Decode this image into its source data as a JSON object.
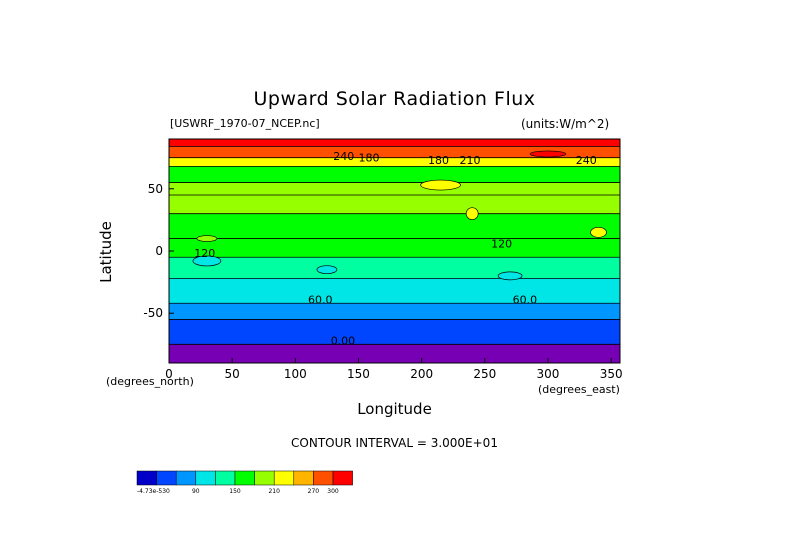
{
  "chart_data": {
    "type": "heatmap",
    "title": "Upward Solar Radiation Flux",
    "file_label": "[USWRF_1970-07_NCEP.nc]",
    "units_label": "(units:W/m^2)",
    "xlabel": "Longitude",
    "ylabel": "Latitude",
    "x_unit_note": "(degrees_east)",
    "y_unit_note": "(degrees_north)",
    "xlim": [
      0,
      357
    ],
    "ylim": [
      -90,
      90
    ],
    "x_ticks": [
      0,
      50,
      100,
      150,
      200,
      250,
      300,
      350
    ],
    "y_ticks": [
      -50,
      0,
      50
    ],
    "contour_interval_text": "CONTOUR INTERVAL = 3.000E+01",
    "contour_labels": [
      {
        "text": "60.0",
        "lon": 110,
        "lat": -42
      },
      {
        "text": "60.0",
        "lon": 272,
        "lat": -42
      },
      {
        "text": "0.00",
        "lon": 128,
        "lat": -75
      },
      {
        "text": "120",
        "lon": 20,
        "lat": -5
      },
      {
        "text": "120",
        "lon": 255,
        "lat": 3
      },
      {
        "text": "240",
        "lon": 130,
        "lat": 73
      },
      {
        "text": "180",
        "lon": 150,
        "lat": 72
      },
      {
        "text": "180",
        "lon": 205,
        "lat": 70
      },
      {
        "text": "210",
        "lon": 230,
        "lat": 70
      },
      {
        "text": "240",
        "lon": 322,
        "lat": 70
      }
    ],
    "lat_bands": [
      {
        "lat_from": -90,
        "lat_to": -75,
        "value": 0
      },
      {
        "lat_from": -75,
        "lat_to": -55,
        "value": 30
      },
      {
        "lat_from": -55,
        "lat_to": -42,
        "value": 60
      },
      {
        "lat_from": -42,
        "lat_to": -22,
        "value": 90
      },
      {
        "lat_from": -22,
        "lat_to": -5,
        "value": 120
      },
      {
        "lat_from": -5,
        "lat_to": 10,
        "value": 150
      },
      {
        "lat_from": 10,
        "lat_to": 30,
        "value": 165
      },
      {
        "lat_from": 30,
        "lat_to": 45,
        "value": 180
      },
      {
        "lat_from": 45,
        "lat_to": 55,
        "value": 195
      },
      {
        "lat_from": 55,
        "lat_to": 68,
        "value": 170
      },
      {
        "lat_from": 68,
        "lat_to": 75,
        "value": 220
      },
      {
        "lat_from": 75,
        "lat_to": 84,
        "value": 285
      },
      {
        "lat_from": 84,
        "lat_to": 90,
        "value": 300
      }
    ],
    "colorbar": {
      "levels": [
        "-4.73e-530",
        "",
        "",
        "90",
        "",
        "150",
        "",
        "210",
        "",
        "270",
        "300"
      ],
      "colors": [
        "#0000c8",
        "#0046ff",
        "#0096ff",
        "#00e6e6",
        "#00ffa0",
        "#00ff00",
        "#96ff00",
        "#ffff00",
        "#ffb400",
        "#ff5000",
        "#ff0000"
      ]
    }
  }
}
